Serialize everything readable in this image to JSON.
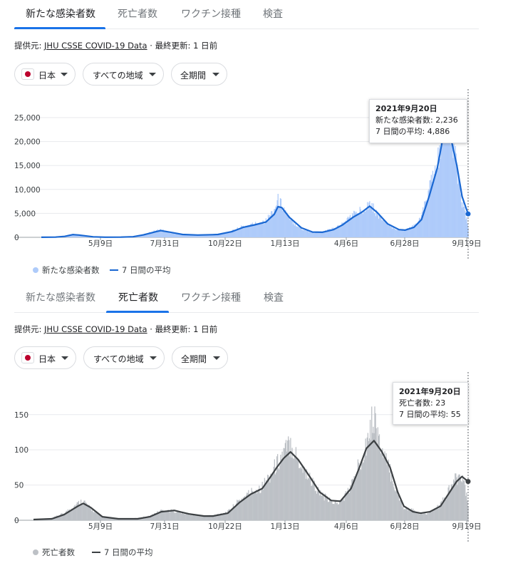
{
  "tabs": [
    "新たな感染者数",
    "死亡者数",
    "ワクチン接種",
    "検査"
  ],
  "source": {
    "prefix": "提供元:",
    "link": "JHU CSSE COVID-19 Data",
    "separator": "·",
    "updated": "最終更新: 1 日前"
  },
  "filters": {
    "country": "日本",
    "region": "すべての地域",
    "period": "全期間"
  },
  "colors": {
    "accent": "#1a73e8",
    "cases_bars": "#aecbfa",
    "cases_line": "#1967d2",
    "deaths_bars": "#bdc1c6",
    "deaths_line": "#3c4043",
    "flag_red": "#bc002d"
  },
  "icons": {
    "flag": "japan-flag-icon",
    "dropdown": "caret-down-icon"
  },
  "cases_panel": {
    "active_tab": 0,
    "tooltip": {
      "date": "2021年9月20日",
      "value_label": "新たな感染者数: 2,236",
      "avg_label": "7 日間の平均: 4,886"
    },
    "legend": {
      "bars": "新たな感染者数",
      "line": "7 日間の平均"
    }
  },
  "deaths_panel": {
    "active_tab": 1,
    "tooltip": {
      "date": "2021年9月20日",
      "value_label": "死亡者数: 23",
      "avg_label": "7 日間の平均: 55"
    },
    "legend": {
      "bars": "死亡者数",
      "line": "7 日間の平均"
    }
  },
  "chart_data": [
    {
      "type": "bar",
      "x_ticks": [
        "5月9日",
        "7月31日",
        "10月22日",
        "1月13日",
        "4月6日",
        "6月28日",
        "9月19日"
      ],
      "ylim": [
        0,
        25000
      ],
      "yticks": [
        "25,000",
        "20,000",
        "15,000",
        "10,000",
        "5,000",
        "0"
      ],
      "ytick_values": [
        25000,
        20000,
        15000,
        10000,
        5000,
        0
      ],
      "grid": true,
      "legend_position": "bottom-left",
      "highlight": {
        "date": "2021年9月20日",
        "value": 2236,
        "average": 4886
      },
      "series": [
        {
          "name": "新たな感染者数",
          "kind": "bars"
        },
        {
          "name": "7 日間の平均",
          "kind": "line"
        }
      ],
      "points": [
        {
          "x": "2020-03-01",
          "avg": 10,
          "daily": 12
        },
        {
          "x": "2020-03-20",
          "avg": 40,
          "daily": 50
        },
        {
          "x": "2020-04-01",
          "avg": 200,
          "daily": 240
        },
        {
          "x": "2020-04-12",
          "avg": 560,
          "daily": 700
        },
        {
          "x": "2020-04-20",
          "avg": 480,
          "daily": 400
        },
        {
          "x": "2020-05-09",
          "avg": 100,
          "daily": 80
        },
        {
          "x": "2020-05-25",
          "avg": 30,
          "daily": 25
        },
        {
          "x": "2020-06-15",
          "avg": 40,
          "daily": 50
        },
        {
          "x": "2020-07-01",
          "avg": 120,
          "daily": 150
        },
        {
          "x": "2020-07-15",
          "avg": 500,
          "daily": 600
        },
        {
          "x": "2020-08-01",
          "avg": 1200,
          "daily": 1400
        },
        {
          "x": "2020-08-07",
          "avg": 1400,
          "daily": 1600
        },
        {
          "x": "2020-08-20",
          "avg": 1050,
          "daily": 950
        },
        {
          "x": "2020-09-05",
          "avg": 600,
          "daily": 550
        },
        {
          "x": "2020-09-25",
          "avg": 480,
          "daily": 500
        },
        {
          "x": "2020-10-15",
          "avg": 550,
          "daily": 600
        },
        {
          "x": "2020-10-22",
          "avg": 600,
          "daily": 650
        },
        {
          "x": "2020-11-10",
          "avg": 1200,
          "daily": 1300
        },
        {
          "x": "2020-11-25",
          "avg": 2100,
          "daily": 2300
        },
        {
          "x": "2020-12-10",
          "avg": 2600,
          "daily": 2800
        },
        {
          "x": "2020-12-25",
          "avg": 3200,
          "daily": 3500
        },
        {
          "x": "2021-01-05",
          "avg": 4800,
          "daily": 5800
        },
        {
          "x": "2021-01-10",
          "avg": 6400,
          "daily": 7800
        },
        {
          "x": "2021-01-15",
          "avg": 6200,
          "daily": 6800
        },
        {
          "x": "2021-01-25",
          "avg": 4200,
          "daily": 3900
        },
        {
          "x": "2021-02-10",
          "avg": 2000,
          "daily": 1800
        },
        {
          "x": "2021-02-25",
          "avg": 1100,
          "daily": 1000
        },
        {
          "x": "2021-03-10",
          "avg": 1050,
          "daily": 1100
        },
        {
          "x": "2021-03-25",
          "avg": 1600,
          "daily": 1800
        },
        {
          "x": "2021-04-06",
          "avg": 2600,
          "daily": 2800
        },
        {
          "x": "2021-04-20",
          "avg": 4200,
          "daily": 4800
        },
        {
          "x": "2021-05-01",
          "avg": 5200,
          "daily": 5600
        },
        {
          "x": "2021-05-12",
          "avg": 6500,
          "daily": 7200
        },
        {
          "x": "2021-05-22",
          "avg": 5200,
          "daily": 4900
        },
        {
          "x": "2021-06-05",
          "avg": 2800,
          "daily": 2600
        },
        {
          "x": "2021-06-20",
          "avg": 1600,
          "daily": 1500
        },
        {
          "x": "2021-06-28",
          "avg": 1500,
          "daily": 1600
        },
        {
          "x": "2021-07-10",
          "avg": 2100,
          "daily": 2300
        },
        {
          "x": "2021-07-20",
          "avg": 3700,
          "daily": 4200
        },
        {
          "x": "2021-07-30",
          "avg": 8500,
          "daily": 10000
        },
        {
          "x": "2021-08-10",
          "avg": 14500,
          "daily": 15000
        },
        {
          "x": "2021-08-20",
          "avg": 22900,
          "daily": 25500
        },
        {
          "x": "2021-08-27",
          "avg": 21500,
          "daily": 22000
        },
        {
          "x": "2021-09-05",
          "avg": 15000,
          "daily": 14500
        },
        {
          "x": "2021-09-12",
          "avg": 8500,
          "daily": 7500
        },
        {
          "x": "2021-09-20",
          "avg": 4886,
          "daily": 2236
        }
      ]
    },
    {
      "type": "bar",
      "x_ticks": [
        "5月9日",
        "7月31日",
        "10月22日",
        "1月13日",
        "4月6日",
        "6月28日",
        "9月19日"
      ],
      "ylim": [
        0,
        170
      ],
      "yticks": [
        "150",
        "100",
        "50",
        "0"
      ],
      "ytick_values": [
        150,
        100,
        50,
        0
      ],
      "grid": true,
      "legend_position": "bottom-left",
      "highlight": {
        "date": "2021年9月20日",
        "value": 23,
        "average": 55
      },
      "series": [
        {
          "name": "死亡者数",
          "kind": "bars"
        },
        {
          "name": "7 日間の平均",
          "kind": "line"
        }
      ],
      "points": [
        {
          "x": "2020-03-01",
          "avg": 1,
          "daily": 1
        },
        {
          "x": "2020-03-25",
          "avg": 2,
          "daily": 3
        },
        {
          "x": "2020-04-10",
          "avg": 8,
          "daily": 10
        },
        {
          "x": "2020-04-28",
          "avg": 20,
          "daily": 24
        },
        {
          "x": "2020-05-05",
          "avg": 24,
          "daily": 28
        },
        {
          "x": "2020-05-15",
          "avg": 18,
          "daily": 16
        },
        {
          "x": "2020-05-30",
          "avg": 5,
          "daily": 4
        },
        {
          "x": "2020-06-20",
          "avg": 2,
          "daily": 2
        },
        {
          "x": "2020-07-15",
          "avg": 2,
          "daily": 3
        },
        {
          "x": "2020-07-31",
          "avg": 5,
          "daily": 6
        },
        {
          "x": "2020-08-15",
          "avg": 12,
          "daily": 14
        },
        {
          "x": "2020-09-01",
          "avg": 14,
          "daily": 13
        },
        {
          "x": "2020-09-20",
          "avg": 9,
          "daily": 8
        },
        {
          "x": "2020-10-10",
          "avg": 6,
          "daily": 6
        },
        {
          "x": "2020-10-22",
          "avg": 6,
          "daily": 7
        },
        {
          "x": "2020-11-10",
          "avg": 10,
          "daily": 12
        },
        {
          "x": "2020-11-25",
          "avg": 25,
          "daily": 28
        },
        {
          "x": "2020-12-10",
          "avg": 37,
          "daily": 40
        },
        {
          "x": "2020-12-25",
          "avg": 45,
          "daily": 48
        },
        {
          "x": "2021-01-05",
          "avg": 62,
          "daily": 65
        },
        {
          "x": "2021-01-13",
          "avg": 75,
          "daily": 80
        },
        {
          "x": "2021-01-22",
          "avg": 88,
          "daily": 95
        },
        {
          "x": "2021-01-31",
          "avg": 97,
          "daily": 110
        },
        {
          "x": "2021-02-10",
          "avg": 86,
          "daily": 85
        },
        {
          "x": "2021-02-25",
          "avg": 62,
          "daily": 60
        },
        {
          "x": "2021-03-10",
          "avg": 40,
          "daily": 38
        },
        {
          "x": "2021-03-25",
          "avg": 28,
          "daily": 26
        },
        {
          "x": "2021-04-06",
          "avg": 27,
          "daily": 25
        },
        {
          "x": "2021-04-20",
          "avg": 45,
          "daily": 48
        },
        {
          "x": "2021-05-01",
          "avg": 75,
          "daily": 80
        },
        {
          "x": "2021-05-10",
          "avg": 102,
          "daily": 110
        },
        {
          "x": "2021-05-20",
          "avg": 113,
          "daily": 150
        },
        {
          "x": "2021-05-30",
          "avg": 98,
          "daily": 96
        },
        {
          "x": "2021-06-10",
          "avg": 75,
          "daily": 70
        },
        {
          "x": "2021-06-20",
          "avg": 40,
          "daily": 35
        },
        {
          "x": "2021-06-28",
          "avg": 20,
          "daily": 18
        },
        {
          "x": "2021-07-10",
          "avg": 12,
          "daily": 14
        },
        {
          "x": "2021-07-20",
          "avg": 10,
          "daily": 9
        },
        {
          "x": "2021-08-01",
          "avg": 12,
          "daily": 10
        },
        {
          "x": "2021-08-15",
          "avg": 20,
          "daily": 22
        },
        {
          "x": "2021-08-27",
          "avg": 40,
          "daily": 44
        },
        {
          "x": "2021-09-05",
          "avg": 55,
          "daily": 60
        },
        {
          "x": "2021-09-12",
          "avg": 62,
          "daily": 65
        },
        {
          "x": "2021-09-20",
          "avg": 55,
          "daily": 23
        }
      ]
    }
  ]
}
